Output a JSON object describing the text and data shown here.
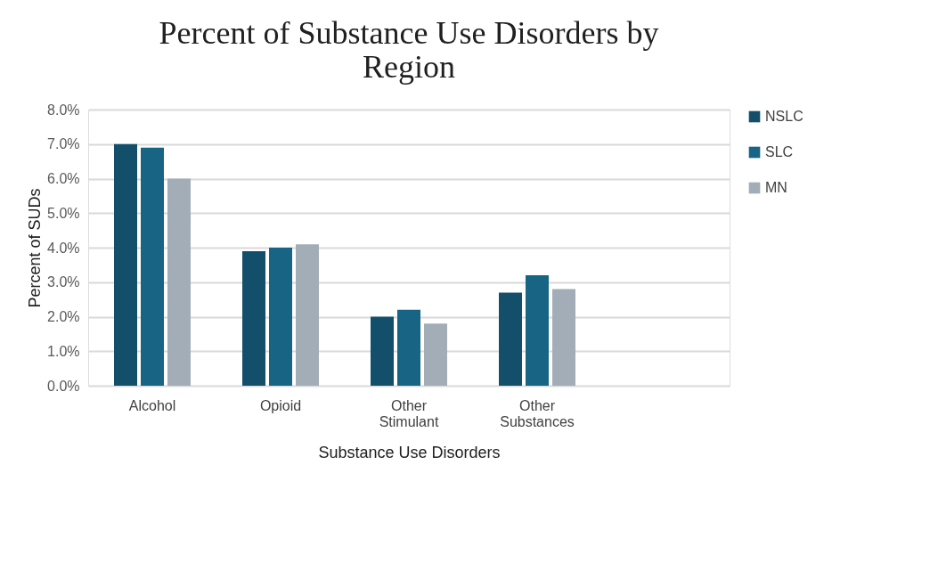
{
  "chart_data": {
    "type": "bar",
    "title": "Percent of Substance Use Disorders by Region",
    "xlabel": "Substance Use Disorders",
    "ylabel": "Percent of SUDs",
    "categories": [
      "Alcohol",
      "Opioid",
      "Other Stimulant",
      "Other Substances"
    ],
    "series": [
      {
        "name": "NSLC",
        "color": "#134f6b",
        "values": [
          7.0,
          3.9,
          2.0,
          2.7
        ]
      },
      {
        "name": "SLC",
        "color": "#186485",
        "values": [
          6.9,
          4.0,
          2.2,
          3.2
        ]
      },
      {
        "name": "MN",
        "color": "#a2adb8",
        "values": [
          6.0,
          4.1,
          1.8,
          2.8
        ]
      }
    ],
    "ylim": [
      0,
      8
    ],
    "yticks": [
      {
        "value": 0,
        "label": "0.0%"
      },
      {
        "value": 1,
        "label": "1.0%"
      },
      {
        "value": 2,
        "label": "2.0%"
      },
      {
        "value": 3,
        "label": "3.0%"
      },
      {
        "value": 4,
        "label": "4.0%"
      },
      {
        "value": 5,
        "label": "5.0%"
      },
      {
        "value": 6,
        "label": "6.0%"
      },
      {
        "value": 7,
        "label": "7.0%"
      },
      {
        "value": 8,
        "label": "8.0%"
      }
    ],
    "grid": "y",
    "legend": "right"
  }
}
